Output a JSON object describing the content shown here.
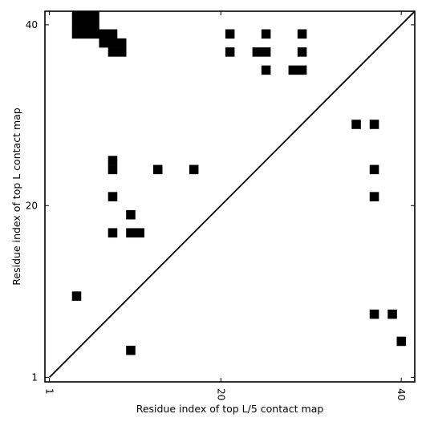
{
  "chart_data": {
    "type": "heatmap",
    "xlabel": "Residue index of top L/5 contact map",
    "ylabel": "Residue index of top L contact map",
    "xlim": [
      0.5,
      41.5
    ],
    "ylim": [
      0.5,
      41.5
    ],
    "x_ticks": [
      1,
      20,
      40
    ],
    "y_ticks": [
      1,
      20,
      40
    ],
    "diagonal": true,
    "cells": [
      [
        4,
        41
      ],
      [
        5,
        41
      ],
      [
        6,
        41
      ],
      [
        4,
        40
      ],
      [
        5,
        40
      ],
      [
        6,
        40
      ],
      [
        4,
        39
      ],
      [
        5,
        39
      ],
      [
        6,
        39
      ],
      [
        7,
        39
      ],
      [
        8,
        39
      ],
      [
        7,
        38
      ],
      [
        8,
        38
      ],
      [
        9,
        38
      ],
      [
        8,
        37
      ],
      [
        9,
        37
      ],
      [
        21,
        39
      ],
      [
        25,
        39
      ],
      [
        29,
        39
      ],
      [
        21,
        37
      ],
      [
        24,
        37
      ],
      [
        25,
        37
      ],
      [
        29,
        37
      ],
      [
        25,
        35
      ],
      [
        28,
        35
      ],
      [
        29,
        35
      ],
      [
        35,
        29
      ],
      [
        37,
        29
      ],
      [
        8,
        25
      ],
      [
        8,
        24
      ],
      [
        13,
        24
      ],
      [
        17,
        24
      ],
      [
        37,
        24
      ],
      [
        8,
        21
      ],
      [
        37,
        21
      ],
      [
        10,
        19
      ],
      [
        8,
        17
      ],
      [
        10,
        17
      ],
      [
        11,
        17
      ],
      [
        4,
        10
      ],
      [
        37,
        8
      ],
      [
        39,
        8
      ],
      [
        40,
        5
      ],
      [
        10,
        4
      ]
    ],
    "grid": false,
    "legend": "none"
  }
}
